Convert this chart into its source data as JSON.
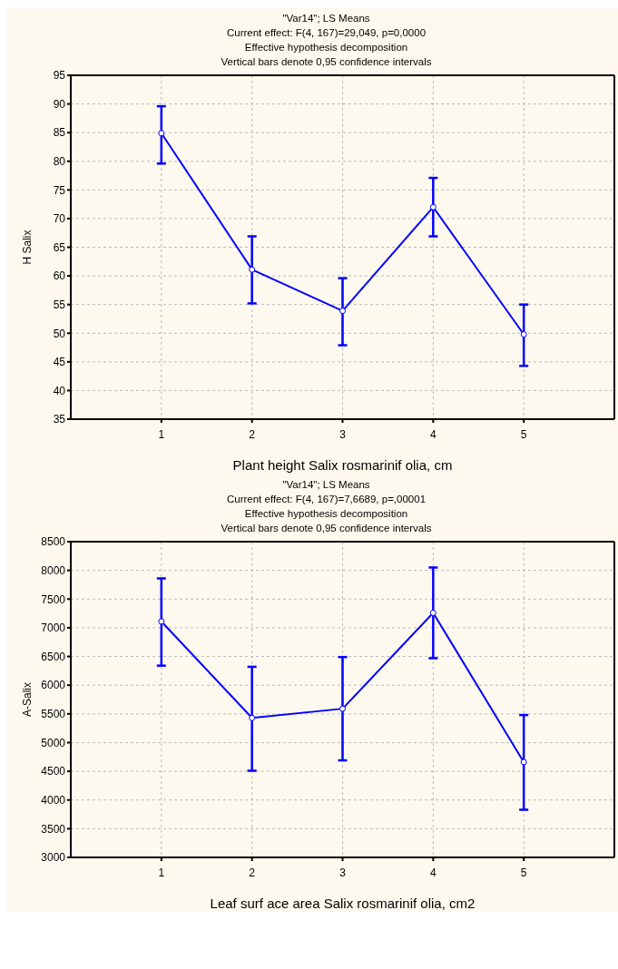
{
  "chart_data": [
    {
      "type": "line",
      "title": "\"Var14\"; LS Means",
      "subtitle": "Current effect: F(4, 167)=29,049, p=0,0000",
      "annotations": [
        "Effective hypothesis decomposition",
        "Vertical bars denote 0,95 confidence intervals"
      ],
      "xlabel": "Plant height Salix rosmarinif olia, cm",
      "ylabel": "H Salix",
      "x": [
        1,
        2,
        3,
        4,
        5
      ],
      "xlim": [
        0,
        6
      ],
      "xticks": [
        1,
        2,
        3,
        4,
        5
      ],
      "ylim": [
        35,
        95
      ],
      "yticks": [
        35,
        40,
        45,
        50,
        55,
        60,
        65,
        70,
        75,
        80,
        85,
        90,
        95
      ],
      "grid": true,
      "marker": "circle",
      "line_style": "solid",
      "series": [
        {
          "color": "#0000ff",
          "values": [
            84.9,
            61.1,
            53.9,
            72.0,
            49.8
          ],
          "errors": [
            [
              79.6,
              89.6
            ],
            [
              55.2,
              66.9
            ],
            [
              47.9,
              59.6
            ],
            [
              66.9,
              77.1
            ],
            [
              44.3,
              55.0
            ]
          ]
        }
      ]
    },
    {
      "type": "line",
      "title": "\"Var14\"; LS Means",
      "subtitle": "Current effect: F(4, 167)=7,6689, p=,00001",
      "annotations": [
        "Effective hypothesis decomposition",
        "Vertical bars denote 0,95 confidence intervals"
      ],
      "xlabel": "Leaf surf ace area Salix rosmarinif olia, cm2",
      "ylabel": "A-Salix",
      "x": [
        1,
        2,
        3,
        4,
        5
      ],
      "xlim": [
        0,
        6
      ],
      "xticks": [
        1,
        2,
        3,
        4,
        5
      ],
      "ylim": [
        3000,
        8500
      ],
      "yticks": [
        3000,
        3500,
        4000,
        4500,
        5000,
        5500,
        6000,
        6500,
        7000,
        7500,
        8000,
        8500
      ],
      "grid": true,
      "marker": "circle",
      "line_style": "solid",
      "series": [
        {
          "color": "#0000ff",
          "values": [
            7110,
            5430,
            5590,
            7260,
            4660
          ],
          "errors": [
            [
              6340,
              7860
            ],
            [
              4510,
              6320
            ],
            [
              4690,
              6490
            ],
            [
              6470,
              8050
            ],
            [
              3830,
              5480
            ]
          ]
        }
      ]
    }
  ]
}
